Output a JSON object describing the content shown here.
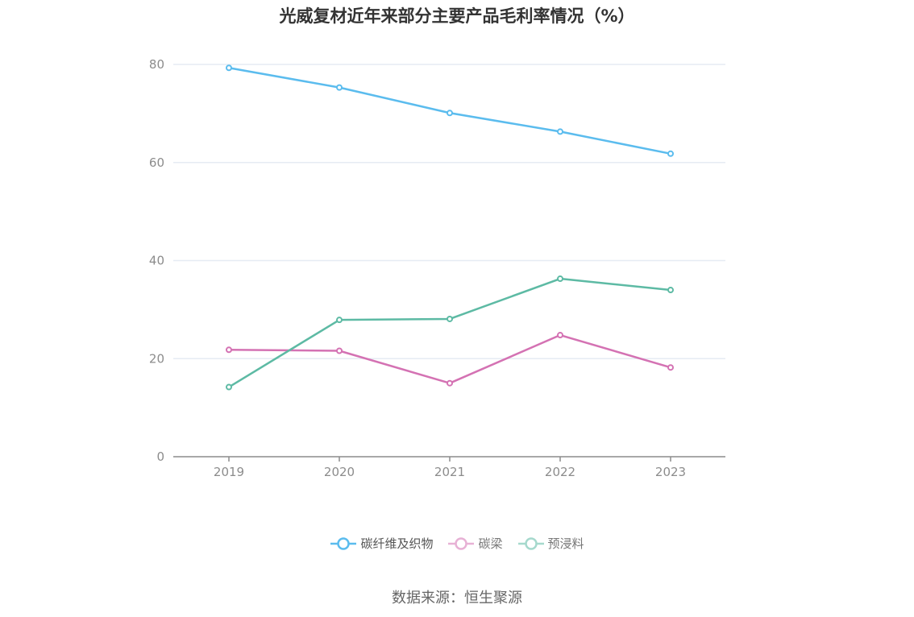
{
  "source_text": "数据来源：恒生聚源",
  "chart_data": {
    "type": "line",
    "title": "光威复材近年来部分主要产品毛利率情况（%）",
    "categories": [
      "2019",
      "2020",
      "2021",
      "2022",
      "2023"
    ],
    "ylim": [
      0,
      80
    ],
    "yticks": [
      "0",
      "20",
      "40",
      "60",
      "80"
    ],
    "grid": true,
    "legend_position": "bottom",
    "series": [
      {
        "name": "碳纤维及织物",
        "color": "#5bbcee",
        "values": [
          79.3,
          75.3,
          70.1,
          66.3,
          61.8
        ]
      },
      {
        "name": "碳梁",
        "color": "#d472b3",
        "values": [
          21.8,
          21.6,
          15.0,
          24.8,
          18.2
        ]
      },
      {
        "name": "预浸料",
        "color": "#5dbaa4",
        "values": [
          14.2,
          27.9,
          28.1,
          36.3,
          34.0
        ]
      }
    ],
    "legend_state": [
      "active",
      "dim",
      "dim"
    ]
  }
}
